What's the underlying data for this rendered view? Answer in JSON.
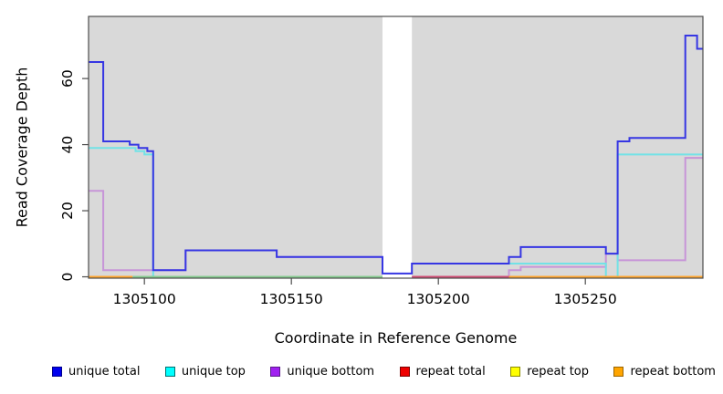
{
  "chart_data": {
    "type": "line",
    "subtype": "step",
    "xlabel": "Coordinate in Reference Genome",
    "ylabel": "Read Coverage Depth",
    "xlim": [
      1305081,
      1305290
    ],
    "ylim": [
      0,
      78.8
    ],
    "x_ticks": [
      {
        "value": 1305100,
        "label": "1305100"
      },
      {
        "value": 1305150,
        "label": "1305150"
      },
      {
        "value": 1305200,
        "label": "1305200"
      },
      {
        "value": 1305250,
        "label": "1305250"
      }
    ],
    "y_ticks": [
      {
        "value": 0,
        "label": "0"
      },
      {
        "value": 20,
        "label": "20"
      },
      {
        "value": 40,
        "label": "40"
      },
      {
        "value": 60,
        "label": "60"
      }
    ],
    "grid": false,
    "panel_background": "#d9d9d9",
    "masked_region": {
      "start": 1305181,
      "end": 1305191,
      "color": "#ffffff"
    },
    "box_color": "#4d4d4d",
    "legend_position": "bottom",
    "series": [
      {
        "name": "unique total",
        "line_color": "#3636e3",
        "legend_color": "#0000ee",
        "legend_border": "#00008b",
        "skip_gap": false,
        "points": [
          [
            1305081,
            65
          ],
          [
            1305086,
            41
          ],
          [
            1305095,
            40
          ],
          [
            1305098,
            39
          ],
          [
            1305101,
            38
          ],
          [
            1305103,
            2
          ],
          [
            1305114,
            8
          ],
          [
            1305145,
            6
          ],
          [
            1305181,
            1
          ],
          [
            1305191,
            4
          ],
          [
            1305224,
            6
          ],
          [
            1305228,
            9
          ],
          [
            1305257,
            7
          ],
          [
            1305261,
            41
          ],
          [
            1305265,
            42
          ],
          [
            1305284,
            73
          ],
          [
            1305288,
            69
          ]
        ]
      },
      {
        "name": "unique top",
        "line_color": "#72e2e6",
        "legend_color": "#00ffff",
        "legend_border": "#006e6e",
        "skip_gap": true,
        "points": [
          [
            1305081,
            39
          ],
          [
            1305097,
            38
          ],
          [
            1305100,
            37
          ],
          [
            1305103,
            0
          ],
          [
            1305191,
            4
          ],
          [
            1305257,
            0
          ],
          [
            1305261,
            37
          ]
        ]
      },
      {
        "name": "unique bottom",
        "line_color": "#c795d8",
        "legend_color": "#a020f0",
        "legend_border": "#5a1a8a",
        "skip_gap": true,
        "points": [
          [
            1305081,
            26
          ],
          [
            1305086,
            2
          ],
          [
            1305114,
            8
          ],
          [
            1305145,
            6
          ],
          [
            1305181,
            1
          ],
          [
            1305191,
            0
          ],
          [
            1305224,
            2
          ],
          [
            1305228,
            3
          ],
          [
            1305257,
            7
          ],
          [
            1305261,
            5
          ],
          [
            1305284,
            36
          ]
        ]
      },
      {
        "name": "repeat total",
        "line_color": "#d04a73",
        "legend_color": "#ee0000",
        "legend_border": "#7a0000",
        "skip_gap": true,
        "points": [
          [
            1305081,
            0
          ]
        ]
      },
      {
        "name": "repeat top",
        "line_color": "#e8e87a",
        "legend_color": "#ffff00",
        "legend_border": "#8a8a00",
        "skip_gap": true,
        "points": [
          [
            1305081,
            0
          ]
        ]
      },
      {
        "name": "repeat bottom",
        "line_color": "#ffa42b",
        "legend_color": "#ffa500",
        "legend_border": "#9a6400",
        "skip_gap": true,
        "points": [
          [
            1305081,
            0
          ]
        ]
      }
    ],
    "baseline_segments": [
      {
        "color": "#ffa42b",
        "start": 1305081,
        "end": 1305096,
        "series": "repeat bottom"
      },
      {
        "color": "#85cb8f",
        "start": 1305096,
        "end": 1305181,
        "series": "repeat top"
      },
      {
        "color": "#d04a73",
        "start": 1305191,
        "end": 1305224,
        "series": "repeat total"
      },
      {
        "color": "#ffa42b",
        "start": 1305224,
        "end": 1305290,
        "series": "repeat bottom"
      }
    ]
  }
}
